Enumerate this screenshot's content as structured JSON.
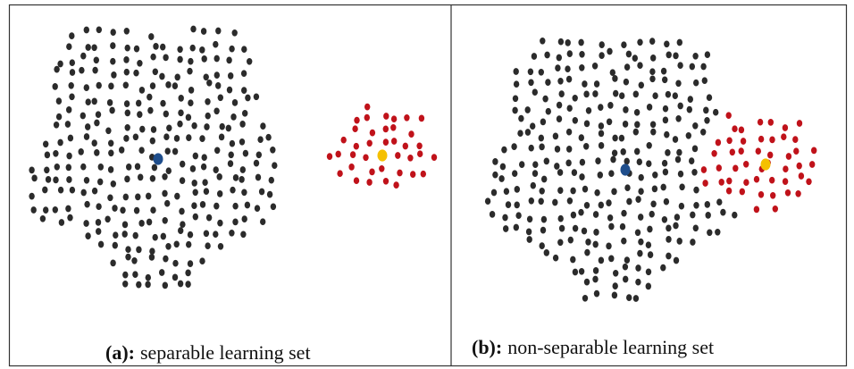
{
  "panels": [
    {
      "label": "(a):",
      "caption": "separable learning set"
    },
    {
      "label": "(b):",
      "caption": "non-separable learning set"
    }
  ]
}
